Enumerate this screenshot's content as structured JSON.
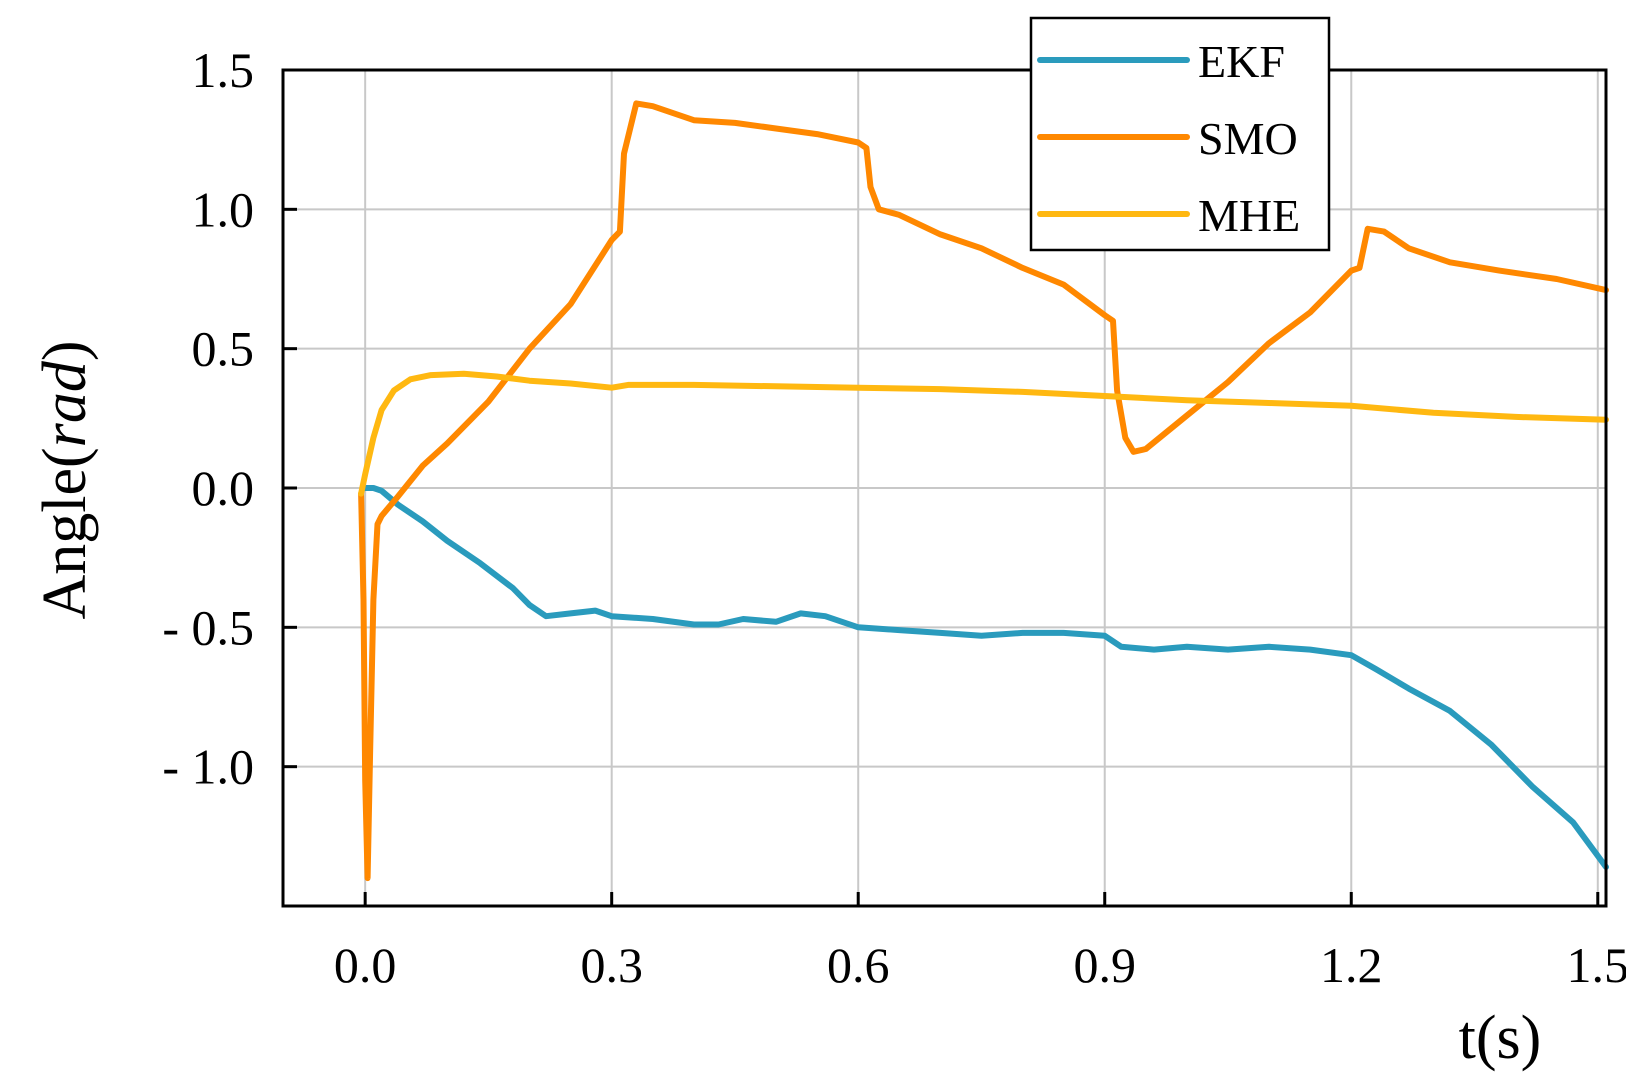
{
  "chart_data": {
    "type": "line",
    "xlabel": "t(s)",
    "ylabel_prefix": "Angle(",
    "ylabel_unit": "rad",
    "ylabel_suffix": ")",
    "xlim": [
      -0.1,
      1.51
    ],
    "ylim": [
      -1.5,
      1.5
    ],
    "x_ticks": [
      0.0,
      0.3,
      0.6,
      0.9,
      1.2,
      1.5
    ],
    "x_tick_labels": [
      "0.0",
      "0.3",
      "0.6",
      "0.9",
      "1.2",
      "1.5"
    ],
    "y_ticks": [
      -1.0,
      -0.5,
      0.0,
      0.5,
      1.0,
      1.5
    ],
    "y_tick_labels": [
      "- 1.0",
      "- 0.5",
      "0.0",
      "0.5",
      "1.0",
      "1.5"
    ],
    "grid": true,
    "legend_position": "top-right",
    "series": [
      {
        "name": "EKF",
        "color": "#2a9bbd",
        "points": [
          [
            0.0,
            0.0
          ],
          [
            0.01,
            0.0
          ],
          [
            0.02,
            -0.01
          ],
          [
            0.04,
            -0.06
          ],
          [
            0.07,
            -0.12
          ],
          [
            0.1,
            -0.19
          ],
          [
            0.14,
            -0.27
          ],
          [
            0.18,
            -0.36
          ],
          [
            0.2,
            -0.42
          ],
          [
            0.22,
            -0.46
          ],
          [
            0.25,
            -0.45
          ],
          [
            0.28,
            -0.44
          ],
          [
            0.3,
            -0.46
          ],
          [
            0.35,
            -0.47
          ],
          [
            0.4,
            -0.49
          ],
          [
            0.43,
            -0.49
          ],
          [
            0.46,
            -0.47
          ],
          [
            0.5,
            -0.48
          ],
          [
            0.53,
            -0.45
          ],
          [
            0.56,
            -0.46
          ],
          [
            0.6,
            -0.5
          ],
          [
            0.65,
            -0.51
          ],
          [
            0.7,
            -0.52
          ],
          [
            0.75,
            -0.53
          ],
          [
            0.8,
            -0.52
          ],
          [
            0.85,
            -0.52
          ],
          [
            0.9,
            -0.53
          ],
          [
            0.92,
            -0.57
          ],
          [
            0.96,
            -0.58
          ],
          [
            1.0,
            -0.57
          ],
          [
            1.05,
            -0.58
          ],
          [
            1.1,
            -0.57
          ],
          [
            1.15,
            -0.58
          ],
          [
            1.2,
            -0.6
          ],
          [
            1.23,
            -0.65
          ],
          [
            1.27,
            -0.72
          ],
          [
            1.32,
            -0.8
          ],
          [
            1.37,
            -0.92
          ],
          [
            1.42,
            -1.07
          ],
          [
            1.47,
            -1.2
          ],
          [
            1.51,
            -1.36
          ]
        ]
      },
      {
        "name": "SMO",
        "color": "#ff8800",
        "points": [
          [
            -0.005,
            -0.02
          ],
          [
            -0.002,
            -0.4
          ],
          [
            0.0,
            -1.05
          ],
          [
            0.003,
            -1.4
          ],
          [
            0.006,
            -0.95
          ],
          [
            0.01,
            -0.4
          ],
          [
            0.015,
            -0.13
          ],
          [
            0.02,
            -0.1
          ],
          [
            0.04,
            -0.03
          ],
          [
            0.07,
            0.08
          ],
          [
            0.1,
            0.16
          ],
          [
            0.15,
            0.31
          ],
          [
            0.2,
            0.5
          ],
          [
            0.25,
            0.66
          ],
          [
            0.3,
            0.89
          ],
          [
            0.31,
            0.92
          ],
          [
            0.315,
            1.2
          ],
          [
            0.33,
            1.38
          ],
          [
            0.35,
            1.37
          ],
          [
            0.4,
            1.32
          ],
          [
            0.45,
            1.31
          ],
          [
            0.5,
            1.29
          ],
          [
            0.55,
            1.27
          ],
          [
            0.6,
            1.24
          ],
          [
            0.61,
            1.22
          ],
          [
            0.615,
            1.08
          ],
          [
            0.625,
            1.0
          ],
          [
            0.65,
            0.98
          ],
          [
            0.7,
            0.91
          ],
          [
            0.75,
            0.86
          ],
          [
            0.8,
            0.79
          ],
          [
            0.85,
            0.73
          ],
          [
            0.9,
            0.62
          ],
          [
            0.91,
            0.6
          ],
          [
            0.915,
            0.35
          ],
          [
            0.925,
            0.18
          ],
          [
            0.935,
            0.13
          ],
          [
            0.95,
            0.14
          ],
          [
            1.0,
            0.26
          ],
          [
            1.05,
            0.38
          ],
          [
            1.1,
            0.52
          ],
          [
            1.15,
            0.63
          ],
          [
            1.2,
            0.78
          ],
          [
            1.21,
            0.79
          ],
          [
            1.22,
            0.93
          ],
          [
            1.24,
            0.92
          ],
          [
            1.27,
            0.86
          ],
          [
            1.32,
            0.81
          ],
          [
            1.38,
            0.78
          ],
          [
            1.45,
            0.75
          ],
          [
            1.51,
            0.71
          ]
        ]
      },
      {
        "name": "MHE",
        "color": "#ffb811",
        "points": [
          [
            -0.005,
            -0.02
          ],
          [
            0.0,
            0.05
          ],
          [
            0.01,
            0.18
          ],
          [
            0.02,
            0.28
          ],
          [
            0.035,
            0.35
          ],
          [
            0.055,
            0.39
          ],
          [
            0.08,
            0.405
          ],
          [
            0.12,
            0.41
          ],
          [
            0.16,
            0.4
          ],
          [
            0.2,
            0.385
          ],
          [
            0.25,
            0.375
          ],
          [
            0.3,
            0.36
          ],
          [
            0.32,
            0.37
          ],
          [
            0.4,
            0.37
          ],
          [
            0.5,
            0.365
          ],
          [
            0.6,
            0.36
          ],
          [
            0.7,
            0.355
          ],
          [
            0.8,
            0.345
          ],
          [
            0.9,
            0.33
          ],
          [
            1.0,
            0.315
          ],
          [
            1.1,
            0.305
          ],
          [
            1.2,
            0.295
          ],
          [
            1.3,
            0.27
          ],
          [
            1.4,
            0.255
          ],
          [
            1.51,
            0.245
          ]
        ]
      }
    ]
  }
}
